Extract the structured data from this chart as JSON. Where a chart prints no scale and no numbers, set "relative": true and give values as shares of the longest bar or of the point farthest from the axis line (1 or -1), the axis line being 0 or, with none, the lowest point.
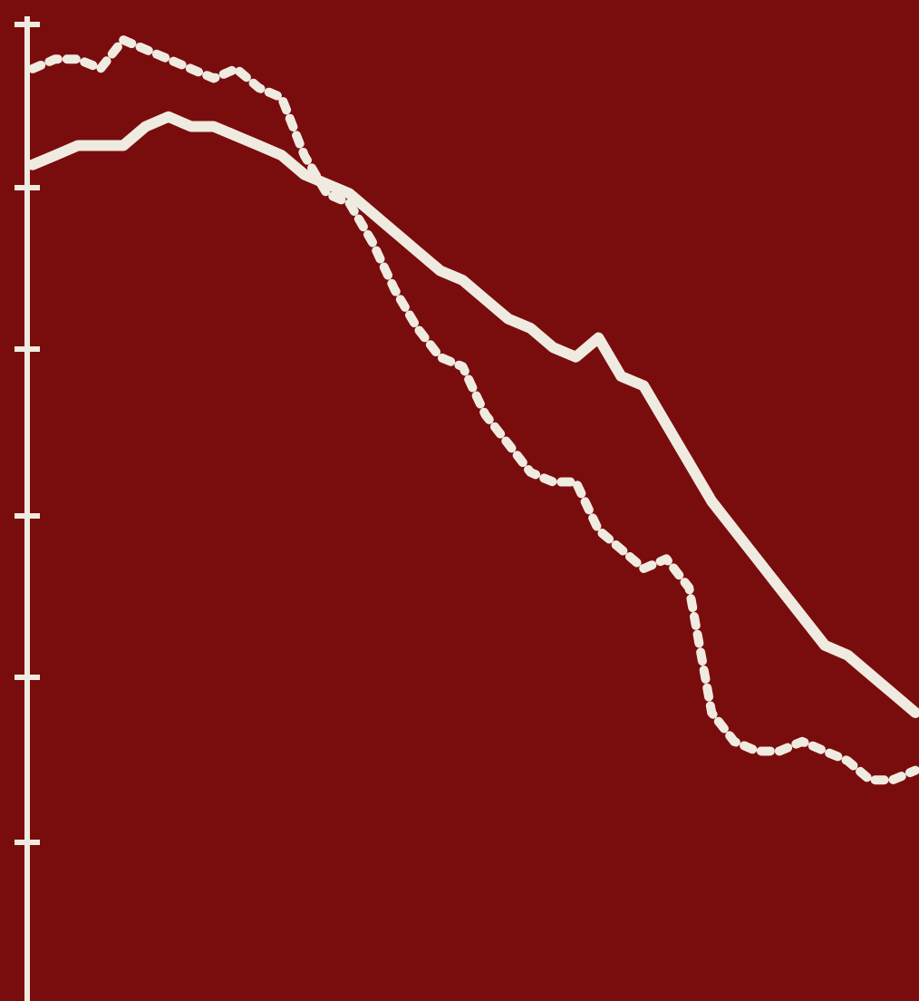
{
  "chart_data": {
    "type": "line",
    "relative": true,
    "marker": "none",
    "categories": [
      null,
      null,
      null,
      null,
      null,
      null,
      null,
      null,
      null,
      null,
      null,
      null,
      null,
      null,
      null,
      null,
      null,
      null,
      null,
      null,
      null,
      null,
      null,
      null,
      null,
      null,
      null,
      null,
      null,
      null,
      null,
      null,
      null,
      null,
      null,
      null,
      null,
      null,
      null,
      null
    ],
    "series": [
      {
        "color": "#f0ebe0",
        "line_style": "dotted",
        "values": [
          0.97,
          0.98,
          0.98,
          0.97,
          1,
          0.99,
          0.98,
          0.97,
          0.96,
          0.97,
          0.95,
          0.94,
          0.88,
          0.84,
          0.83,
          0.79,
          0.74,
          0.7,
          0.67,
          0.66,
          0.61,
          0.58,
          0.55,
          0.54,
          0.54,
          0.49,
          0.47,
          0.45,
          0.46,
          0.43,
          0.3,
          0.27,
          0.26,
          0.26,
          0.27,
          0.26,
          0.25,
          0.23,
          0.23,
          0.24
        ]
      },
      {
        "color": "#f0ebe0",
        "line_style": "solid",
        "values": [
          0.87,
          0.88,
          0.89,
          0.89,
          0.89,
          0.91,
          0.92,
          0.91,
          0.91,
          0.9,
          0.89,
          0.88,
          0.86,
          0.85,
          0.84,
          0.82,
          0.8,
          0.78,
          0.76,
          0.75,
          0.73,
          0.71,
          0.7,
          0.68,
          0.67,
          0.69,
          0.65,
          0.64,
          0.6,
          0.56,
          0.52,
          0.49,
          0.46,
          0.43,
          0.4,
          0.37,
          0.36,
          0.34,
          0.32,
          0.3
        ]
      }
    ]
  }
}
